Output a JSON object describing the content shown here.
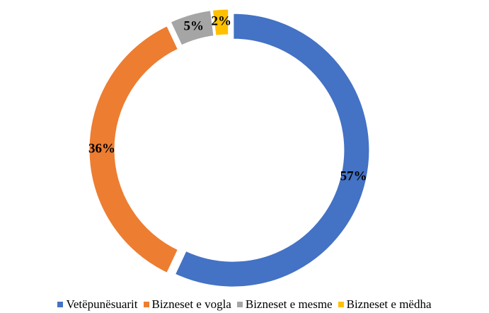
{
  "chart_data": {
    "type": "donut",
    "categories": [
      "Vetëpunësuarit",
      "Bizneset e vogla",
      "Bizneset e mesme",
      "Bizneset e mëdha"
    ],
    "values": [
      57,
      36,
      5,
      2
    ],
    "value_labels": [
      "57%",
      "36%",
      "5%",
      "2%"
    ],
    "colors": [
      "#4472c4",
      "#ed7d31",
      "#a5a5a5",
      "#ffc000"
    ],
    "legend": "bottom"
  }
}
